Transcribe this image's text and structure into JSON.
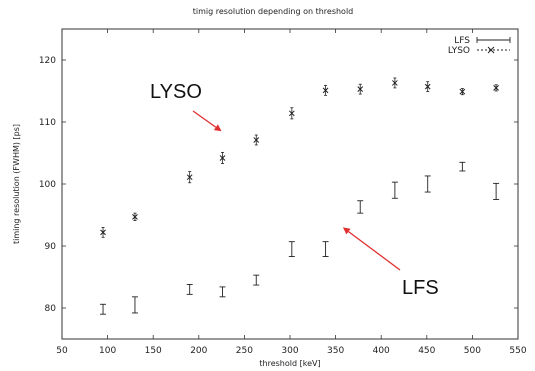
{
  "chart_data": {
    "type": "scatter",
    "title": "timig resolution depending on threshold",
    "xlabel": "threshold [keV]",
    "ylabel": "timing resolution (FWHM) [ps]",
    "xlim": [
      50,
      550
    ],
    "ylim": [
      75,
      125
    ],
    "xticks": [
      50,
      100,
      150,
      200,
      250,
      300,
      350,
      400,
      450,
      500,
      550
    ],
    "yticks": [
      80,
      90,
      100,
      110,
      120
    ],
    "grid": false,
    "legend_position": "top-right",
    "series": [
      {
        "name": "LFS",
        "marker": "errorbar",
        "x": [
          95,
          130,
          190,
          226,
          263,
          302,
          339,
          377,
          415,
          451,
          489,
          526
        ],
        "y": [
          79.8,
          80.5,
          83.0,
          82.6,
          84.5,
          89.5,
          89.5,
          96.3,
          99.0,
          100.0,
          102.8,
          98.8
        ],
        "err": [
          0.8,
          1.3,
          0.8,
          0.8,
          0.8,
          1.2,
          1.2,
          1.0,
          1.3,
          1.3,
          0.7,
          1.3
        ]
      },
      {
        "name": "LYSO",
        "marker": "x",
        "x": [
          95,
          130,
          190,
          226,
          263,
          302,
          339,
          377,
          415,
          451,
          489,
          526
        ],
        "y": [
          92.2,
          94.7,
          101.1,
          104.2,
          107.1,
          111.4,
          115.1,
          115.3,
          116.3,
          115.7,
          114.9,
          115.5
        ],
        "err": [
          0.8,
          0.6,
          0.9,
          0.9,
          0.8,
          0.9,
          0.8,
          0.8,
          0.8,
          0.8,
          0.5,
          0.5
        ]
      }
    ],
    "annotations": [
      {
        "text": "LYSO",
        "points_to": [
          225,
          108.5
        ]
      },
      {
        "text": "LFS",
        "points_to": [
          358,
          93
        ]
      }
    ]
  }
}
